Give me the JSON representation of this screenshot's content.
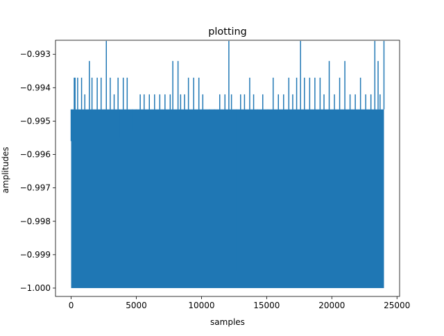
{
  "chart_data": {
    "type": "line",
    "title": "plotting",
    "xlabel": "samples",
    "ylabel": "amplitudes",
    "xlim": [
      -1200,
      25200
    ],
    "ylim": [
      -1.00025,
      -0.99258
    ],
    "xticks": [
      0,
      5000,
      10000,
      15000,
      20000,
      25000
    ],
    "xtick_labels": [
      "0",
      "5000",
      "10000",
      "15000",
      "20000",
      "25000"
    ],
    "yticks": [
      -1.0,
      -0.999,
      -0.998,
      -0.997,
      -0.996,
      -0.995,
      -0.994,
      -0.993
    ],
    "ytick_labels": [
      "−1.000",
      "−0.999",
      "−0.998",
      "−0.997",
      "−0.996",
      "−0.995",
      "−0.994",
      "−0.993"
    ],
    "grid": false,
    "series": [
      {
        "color": "#1f77b4",
        "n_samples": 24000,
        "baseline_max": -0.99465,
        "min": -1.0,
        "x": [
          0,
          120,
          240,
          300,
          500,
          800,
          1050,
          1400,
          1600,
          2000,
          2300,
          2550,
          2700,
          3000,
          3300,
          3600,
          3700,
          4000,
          4300,
          4700,
          5000,
          5300,
          5600,
          6000,
          6400,
          6800,
          7200,
          7600,
          7800,
          8200,
          8400,
          8700,
          9000,
          9400,
          9800,
          10100,
          10600,
          11000,
          11400,
          11800,
          12100,
          12300,
          12700,
          13000,
          13300,
          13700,
          14000,
          14300,
          14700,
          15100,
          15500,
          15900,
          16300,
          16700,
          17000,
          17300,
          17600,
          17900,
          18300,
          18700,
          19100,
          19400,
          19800,
          20200,
          20600,
          21000,
          21400,
          21800,
          22200,
          22600,
          23000,
          23300,
          23550,
          23700,
          24000
        ],
        "y": [
          -0.9956,
          -0.9995,
          -0.9937,
          -0.9937,
          -0.9937,
          -0.9937,
          -0.9942,
          -0.9932,
          -0.9937,
          -0.9937,
          -0.9937,
          -0.9947,
          -0.9926,
          -0.9937,
          -0.9942,
          -0.9937,
          -0.9955,
          -0.9937,
          -0.9937,
          -0.9953,
          -0.9947,
          -0.9942,
          -0.9942,
          -0.9942,
          -0.9942,
          -0.9942,
          -0.9942,
          -0.9942,
          -0.9932,
          -0.9932,
          -0.9942,
          -0.9942,
          -0.9937,
          -0.9937,
          -0.9937,
          -0.9942,
          -0.9947,
          -0.9947,
          -0.9942,
          -0.9942,
          -0.9926,
          -0.9942,
          -0.9995,
          -0.9942,
          -0.9942,
          -0.9937,
          -0.9942,
          -0.9947,
          -0.9942,
          -0.9947,
          -0.9937,
          -0.9942,
          -0.9942,
          -0.9937,
          -0.9942,
          -0.9937,
          -0.9926,
          -0.9937,
          -0.9937,
          -0.9937,
          -0.9937,
          -0.9942,
          -0.9932,
          -0.9942,
          -0.9937,
          -0.9932,
          -0.9942,
          -0.9942,
          -0.9937,
          -0.9942,
          -0.9942,
          -0.9926,
          -0.9932,
          -0.9942,
          -0.9926
        ]
      }
    ]
  }
}
